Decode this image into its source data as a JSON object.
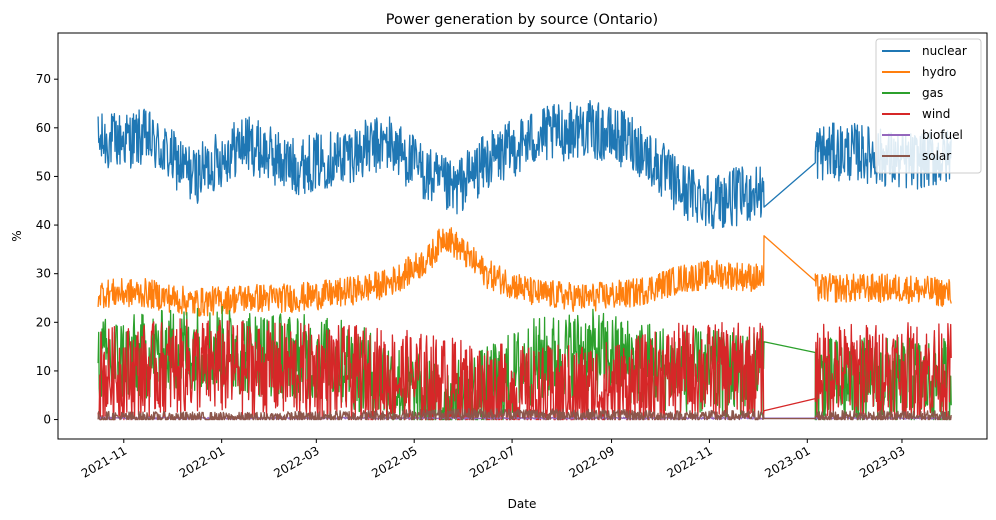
{
  "chart_data": {
    "type": "line",
    "title": "Power generation by source (Ontario)",
    "xlabel": "Date",
    "ylabel": "%",
    "x_ticks": [
      "2021-11",
      "2022-01",
      "2022-03",
      "2022-05",
      "2022-07",
      "2022-09",
      "2022-11",
      "2023-01",
      "2023-03"
    ],
    "y_ticks": [
      0,
      10,
      20,
      30,
      40,
      50,
      60,
      70
    ],
    "xlim": [
      "2021-09-21",
      "2023-04-23"
    ],
    "ylim": [
      -4,
      79.5
    ],
    "x_range": [
      "2021-10-16",
      "2023-04-01"
    ],
    "gap": [
      "2022-12-05",
      "2023-01-06"
    ],
    "legend_position": "top-right",
    "grid": false,
    "series": [
      {
        "name": "nuclear",
        "color": "#1f77b4",
        "x": [
          "2021-10-16",
          "2021-11-15",
          "2021-12-15",
          "2022-01-15",
          "2022-02-15",
          "2022-03-15",
          "2022-04-15",
          "2022-05-10",
          "2022-05-25",
          "2022-06-15",
          "2022-07-15",
          "2022-08-15",
          "2022-09-15",
          "2022-10-15",
          "2022-11-05",
          "2022-12-05",
          "2023-01-06",
          "2023-02-01",
          "2023-03-01",
          "2023-04-01"
        ],
        "y": [
          57,
          58,
          50,
          57,
          52,
          54,
          57,
          50,
          47,
          53,
          58,
          60,
          57,
          47,
          45,
          47,
          55,
          55,
          53,
          54
        ],
        "amplitude": 6,
        "display_range": [
          35.5,
          75.8
        ],
        "jump": [
          43.7,
          52.8
        ]
      },
      {
        "name": "hydro",
        "color": "#ff7f0e",
        "x": [
          "2021-10-16",
          "2021-11-15",
          "2021-12-15",
          "2022-01-15",
          "2022-02-15",
          "2022-03-15",
          "2022-04-15",
          "2022-05-10",
          "2022-05-20",
          "2022-06-15",
          "2022-07-15",
          "2022-08-15",
          "2022-09-15",
          "2022-10-15",
          "2022-11-05",
          "2022-12-05",
          "2023-01-06",
          "2023-02-01",
          "2023-03-01",
          "2023-04-01"
        ],
        "y": [
          26,
          26,
          24,
          25,
          25,
          26,
          28,
          33,
          38,
          30,
          26,
          25,
          26,
          29,
          30,
          29,
          27,
          27,
          27,
          26
        ],
        "amplitude": 3,
        "display_range": [
          19.5,
          43
        ],
        "jump": [
          37.8,
          28.5
        ]
      },
      {
        "name": "gas",
        "color": "#2ca02c",
        "x": [
          "2021-10-16",
          "2021-11-15",
          "2021-12-15",
          "2022-01-15",
          "2022-02-15",
          "2022-03-15",
          "2022-04-15",
          "2022-05-15",
          "2022-06-15",
          "2022-07-15",
          "2022-08-15",
          "2022-09-15",
          "2022-10-15",
          "2022-11-15",
          "2022-12-05",
          "2023-01-06",
          "2023-02-01",
          "2023-03-01",
          "2023-04-01"
        ],
        "y": [
          12,
          13,
          15,
          14,
          13,
          12,
          8,
          3,
          6,
          12,
          14,
          12,
          10,
          9,
          10,
          8,
          8,
          8,
          8
        ],
        "amplitude": 9,
        "display_range": [
          0,
          32.5
        ],
        "jump": [
          16,
          13.8
        ]
      },
      {
        "name": "wind",
        "color": "#d62728",
        "x": [
          "2021-10-16",
          "2021-12-15",
          "2022-02-15",
          "2022-04-15",
          "2022-06-15",
          "2022-07-15",
          "2022-09-15",
          "2022-10-15",
          "2022-12-05",
          "2023-01-06",
          "2023-02-15",
          "2023-04-01"
        ],
        "y": [
          9,
          11,
          10,
          9,
          6,
          5,
          7,
          10,
          10,
          10,
          10,
          10
        ],
        "amplitude": 10,
        "display_range": [
          0,
          28
        ],
        "jump": [
          1.8,
          4.3
        ]
      },
      {
        "name": "biofuel",
        "color": "#9467bd",
        "x": [
          "2021-10-16",
          "2023-04-01"
        ],
        "y": [
          0.3,
          0.3
        ],
        "amplitude": 0.2,
        "display_range": [
          0,
          1
        ],
        "jump": [
          0.3,
          0.3
        ]
      },
      {
        "name": "solar",
        "color": "#8c564b",
        "x": [
          "2021-10-16",
          "2022-01-15",
          "2022-06-15",
          "2022-10-15",
          "2023-04-01"
        ],
        "y": [
          0.5,
          0.3,
          1.2,
          0.7,
          0.6
        ],
        "amplitude": 1.2,
        "display_range": [
          0,
          3
        ],
        "jump": [
          0.2,
          0.2
        ]
      }
    ]
  }
}
